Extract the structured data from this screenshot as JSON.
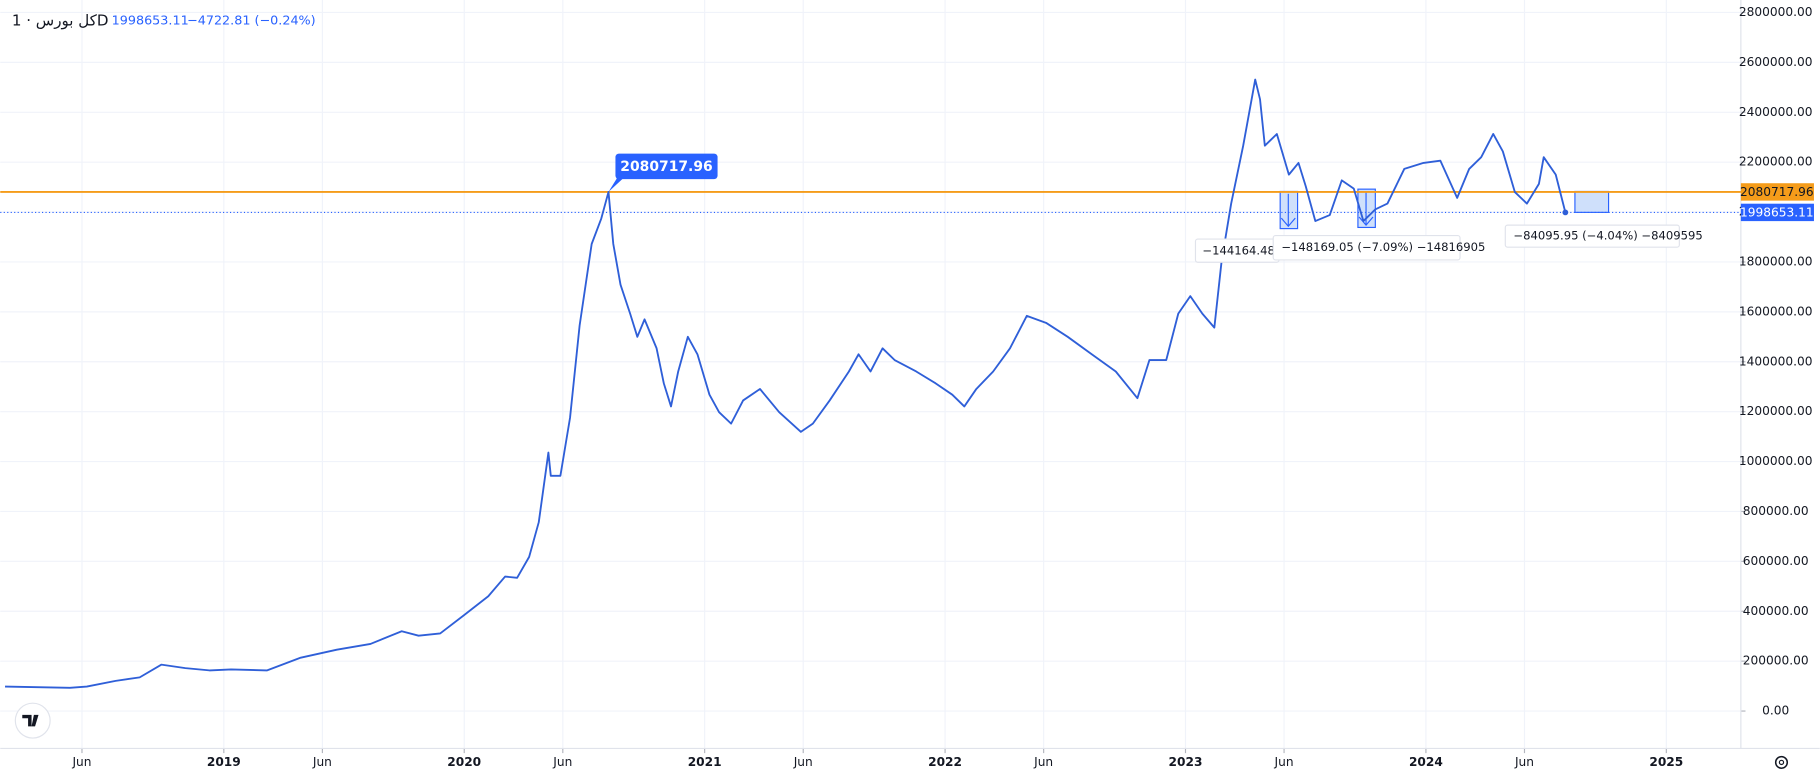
{
  "chart_data": {
    "type": "line",
    "title": "كل بورس · 1D",
    "header_values": [
      "1998653.11",
      "−4722.81 (−0.24%)"
    ],
    "xlim": [
      2018.07,
      2025.31
    ],
    "xticks": [
      {
        "value": 2018.41,
        "label": "Jun"
      },
      2019,
      {
        "value": 2019.41,
        "label": "Jun"
      },
      2020,
      {
        "value": 2020.41,
        "label": "Jun"
      },
      2021,
      {
        "value": 2021.41,
        "label": "Jun"
      },
      2022,
      {
        "value": 2022.41,
        "label": "Jun"
      },
      2023,
      {
        "value": 2023.41,
        "label": "Jun"
      },
      2024,
      {
        "value": 2024.41,
        "label": "Jun"
      },
      2025
    ],
    "ylim": [
      -150000,
      2850000
    ],
    "yticks": [
      {
        "value": 0,
        "label": "0.00"
      },
      {
        "value": 200000,
        "label": "200000.00"
      },
      {
        "value": 400000,
        "label": "400000.00"
      },
      {
        "value": 600000,
        "label": "600000.00"
      },
      {
        "value": 800000,
        "label": "800000.00"
      },
      {
        "value": 1000000,
        "label": "1000000.00"
      },
      {
        "value": 1200000,
        "label": "1200000.00"
      },
      {
        "value": 1400000,
        "label": "1400000.00"
      },
      {
        "value": 1600000,
        "label": "1600000.00"
      },
      {
        "value": 1800000,
        "label": "1800000.00"
      },
      {
        "value": 2000000,
        "label": "2000000.00"
      },
      {
        "value": 2200000,
        "label": "2200000.00"
      },
      {
        "value": 2400000,
        "label": "2400000.00"
      },
      {
        "value": 2600000,
        "label": "2600000.00"
      },
      {
        "value": 2800000,
        "label": "2800000.00"
      }
    ],
    "grid": true,
    "hline": {
      "value": 2080717.96,
      "color": "#f59c1a"
    },
    "last_price": {
      "value": 1998653.11,
      "color": "#2962ff"
    },
    "annotations": [
      "−144164.48 (",
      "−148169.05 (−7.09%) −14816905",
      "−84095.95 (−4.04%) −8409595"
    ],
    "series": [
      {
        "name": "كل بورس",
        "color": "#2f5fd8",
        "x": [
          2018.09,
          2018.36,
          2018.43,
          2018.55,
          2018.65,
          2018.74,
          2018.84,
          2018.94,
          2019.03,
          2019.18,
          2019.32,
          2019.47,
          2019.61,
          2019.74,
          2019.81,
          2019.9,
          2020.0,
          2020.1,
          2020.17,
          2020.22,
          2020.27,
          2020.31,
          2020.35,
          2020.36,
          2020.4,
          2020.44,
          2020.48,
          2020.53,
          2020.57,
          2020.6,
          2020.62,
          2020.65,
          2020.69,
          2020.72,
          2020.75,
          2020.8,
          2020.83,
          2020.86,
          2020.89,
          2020.93,
          2020.97,
          2021.02,
          2021.06,
          2021.11,
          2021.16,
          2021.23,
          2021.31,
          2021.4,
          2021.45,
          2021.52,
          2021.6,
          2021.64,
          2021.69,
          2021.74,
          2021.79,
          2021.88,
          2021.96,
          2022.03,
          2022.08,
          2022.13,
          2022.2,
          2022.27,
          2022.34,
          2022.42,
          2022.51,
          2022.61,
          2022.71,
          2022.8,
          2022.85,
          2022.92,
          2022.97,
          2023.02,
          2023.07,
          2023.12,
          2023.15,
          2023.19,
          2023.24,
          2023.29,
          2023.31,
          2023.33,
          2023.38,
          2023.43,
          2023.47,
          2023.5,
          2023.54,
          2023.6,
          2023.65,
          2023.7,
          2023.74,
          2023.79,
          2023.84,
          2023.91,
          2023.99,
          2024.06,
          2024.13,
          2024.18,
          2024.23,
          2024.28,
          2024.32,
          2024.37,
          2024.42,
          2024.47,
          2024.49,
          2024.54,
          2024.58
        ],
        "values": [
          98000,
          93000,
          98000,
          121000,
          135000,
          186000,
          172000,
          163000,
          167000,
          163000,
          214000,
          246000,
          269000,
          320000,
          302000,
          311000,
          385000,
          460000,
          539000,
          534000,
          618000,
          757000,
          1036000,
          943000,
          943000,
          1175000,
          1546000,
          1872000,
          1974000,
          2080717.96,
          1872000,
          1709000,
          1593000,
          1500000,
          1570000,
          1454000,
          1314000,
          1221000,
          1361000,
          1500000,
          1430000,
          1268000,
          1198000,
          1152000,
          1245000,
          1291000,
          1198000,
          1119000,
          1152000,
          1245000,
          1361000,
          1430000,
          1361000,
          1454000,
          1407000,
          1361000,
          1314000,
          1268000,
          1221000,
          1291000,
          1361000,
          1454000,
          1584000,
          1556000,
          1500000,
          1430000,
          1361000,
          1254000,
          1407000,
          1407000,
          1593000,
          1663000,
          1593000,
          1537000,
          1802000,
          2034000,
          2266000,
          2531000,
          2452000,
          2266000,
          2313000,
          2150000,
          2197000,
          2104000,
          1964000,
          1988000,
          2127000,
          2094000,
          1964000,
          2011000,
          2034000,
          2173000,
          2197000,
          2206000,
          2057000,
          2173000,
          2220000,
          2313000,
          2243000,
          2080000,
          2034000,
          2113000,
          2220000,
          2150000,
          1998653.11
        ]
      }
    ]
  }
}
